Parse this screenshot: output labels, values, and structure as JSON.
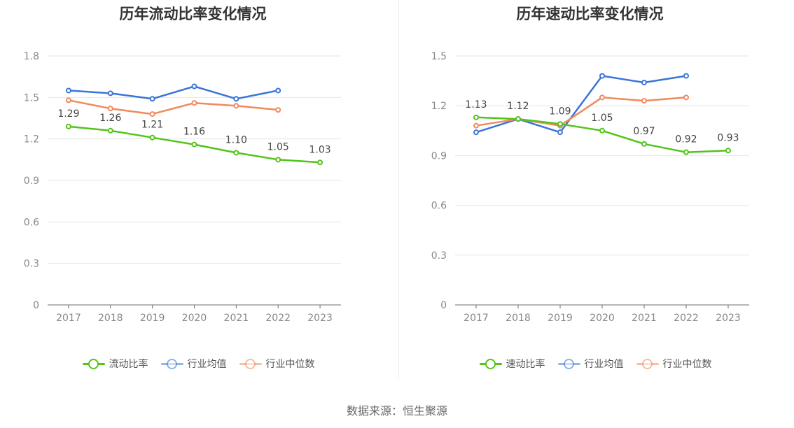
{
  "source_text": "数据来源：恒生聚源",
  "chart_data": [
    {
      "type": "line",
      "title": "历年流动比率变化情况",
      "categories": [
        "2017",
        "2018",
        "2019",
        "2020",
        "2021",
        "2022",
        "2023"
      ],
      "ylim": [
        0,
        1.8
      ],
      "yticks": [
        "0",
        "0.3",
        "0.6",
        "0.9",
        "1.2",
        "1.5",
        "1.8"
      ],
      "grid": true,
      "legend_position": "bottom",
      "series": [
        {
          "name": "流动比率",
          "color": "#52c41a",
          "values": [
            1.29,
            1.26,
            1.21,
            1.16,
            1.1,
            1.05,
            1.03
          ],
          "labels": [
            "1.29",
            "1.26",
            "1.21",
            "1.16",
            "1.10",
            "1.05",
            "1.03"
          ],
          "highlight": true
        },
        {
          "name": "行业均值",
          "color": "#3a75d9",
          "values": [
            1.55,
            1.53,
            1.49,
            1.58,
            1.49,
            1.55,
            null
          ]
        },
        {
          "name": "行业中位数",
          "color": "#f08a5d",
          "values": [
            1.48,
            1.42,
            1.38,
            1.46,
            1.44,
            1.41,
            null
          ]
        }
      ]
    },
    {
      "type": "line",
      "title": "历年速动比率变化情况",
      "categories": [
        "2017",
        "2018",
        "2019",
        "2020",
        "2021",
        "2022",
        "2023"
      ],
      "ylim": [
        0,
        1.5
      ],
      "yticks": [
        "0",
        "0.3",
        "0.6",
        "0.9",
        "1.2",
        "1.5"
      ],
      "grid": true,
      "legend_position": "bottom",
      "series": [
        {
          "name": "速动比率",
          "color": "#52c41a",
          "values": [
            1.13,
            1.12,
            1.09,
            1.05,
            0.97,
            0.92,
            0.93
          ],
          "labels": [
            "1.13",
            "1.12",
            "1.09",
            "1.05",
            "0.97",
            "0.92",
            "0.93"
          ],
          "highlight": true
        },
        {
          "name": "行业均值",
          "color": "#3a75d9",
          "values": [
            1.04,
            1.12,
            1.04,
            1.38,
            1.34,
            1.38,
            null
          ]
        },
        {
          "name": "行业中位数",
          "color": "#f08a5d",
          "values": [
            1.08,
            1.12,
            1.08,
            1.25,
            1.23,
            1.25,
            null
          ]
        }
      ]
    }
  ]
}
